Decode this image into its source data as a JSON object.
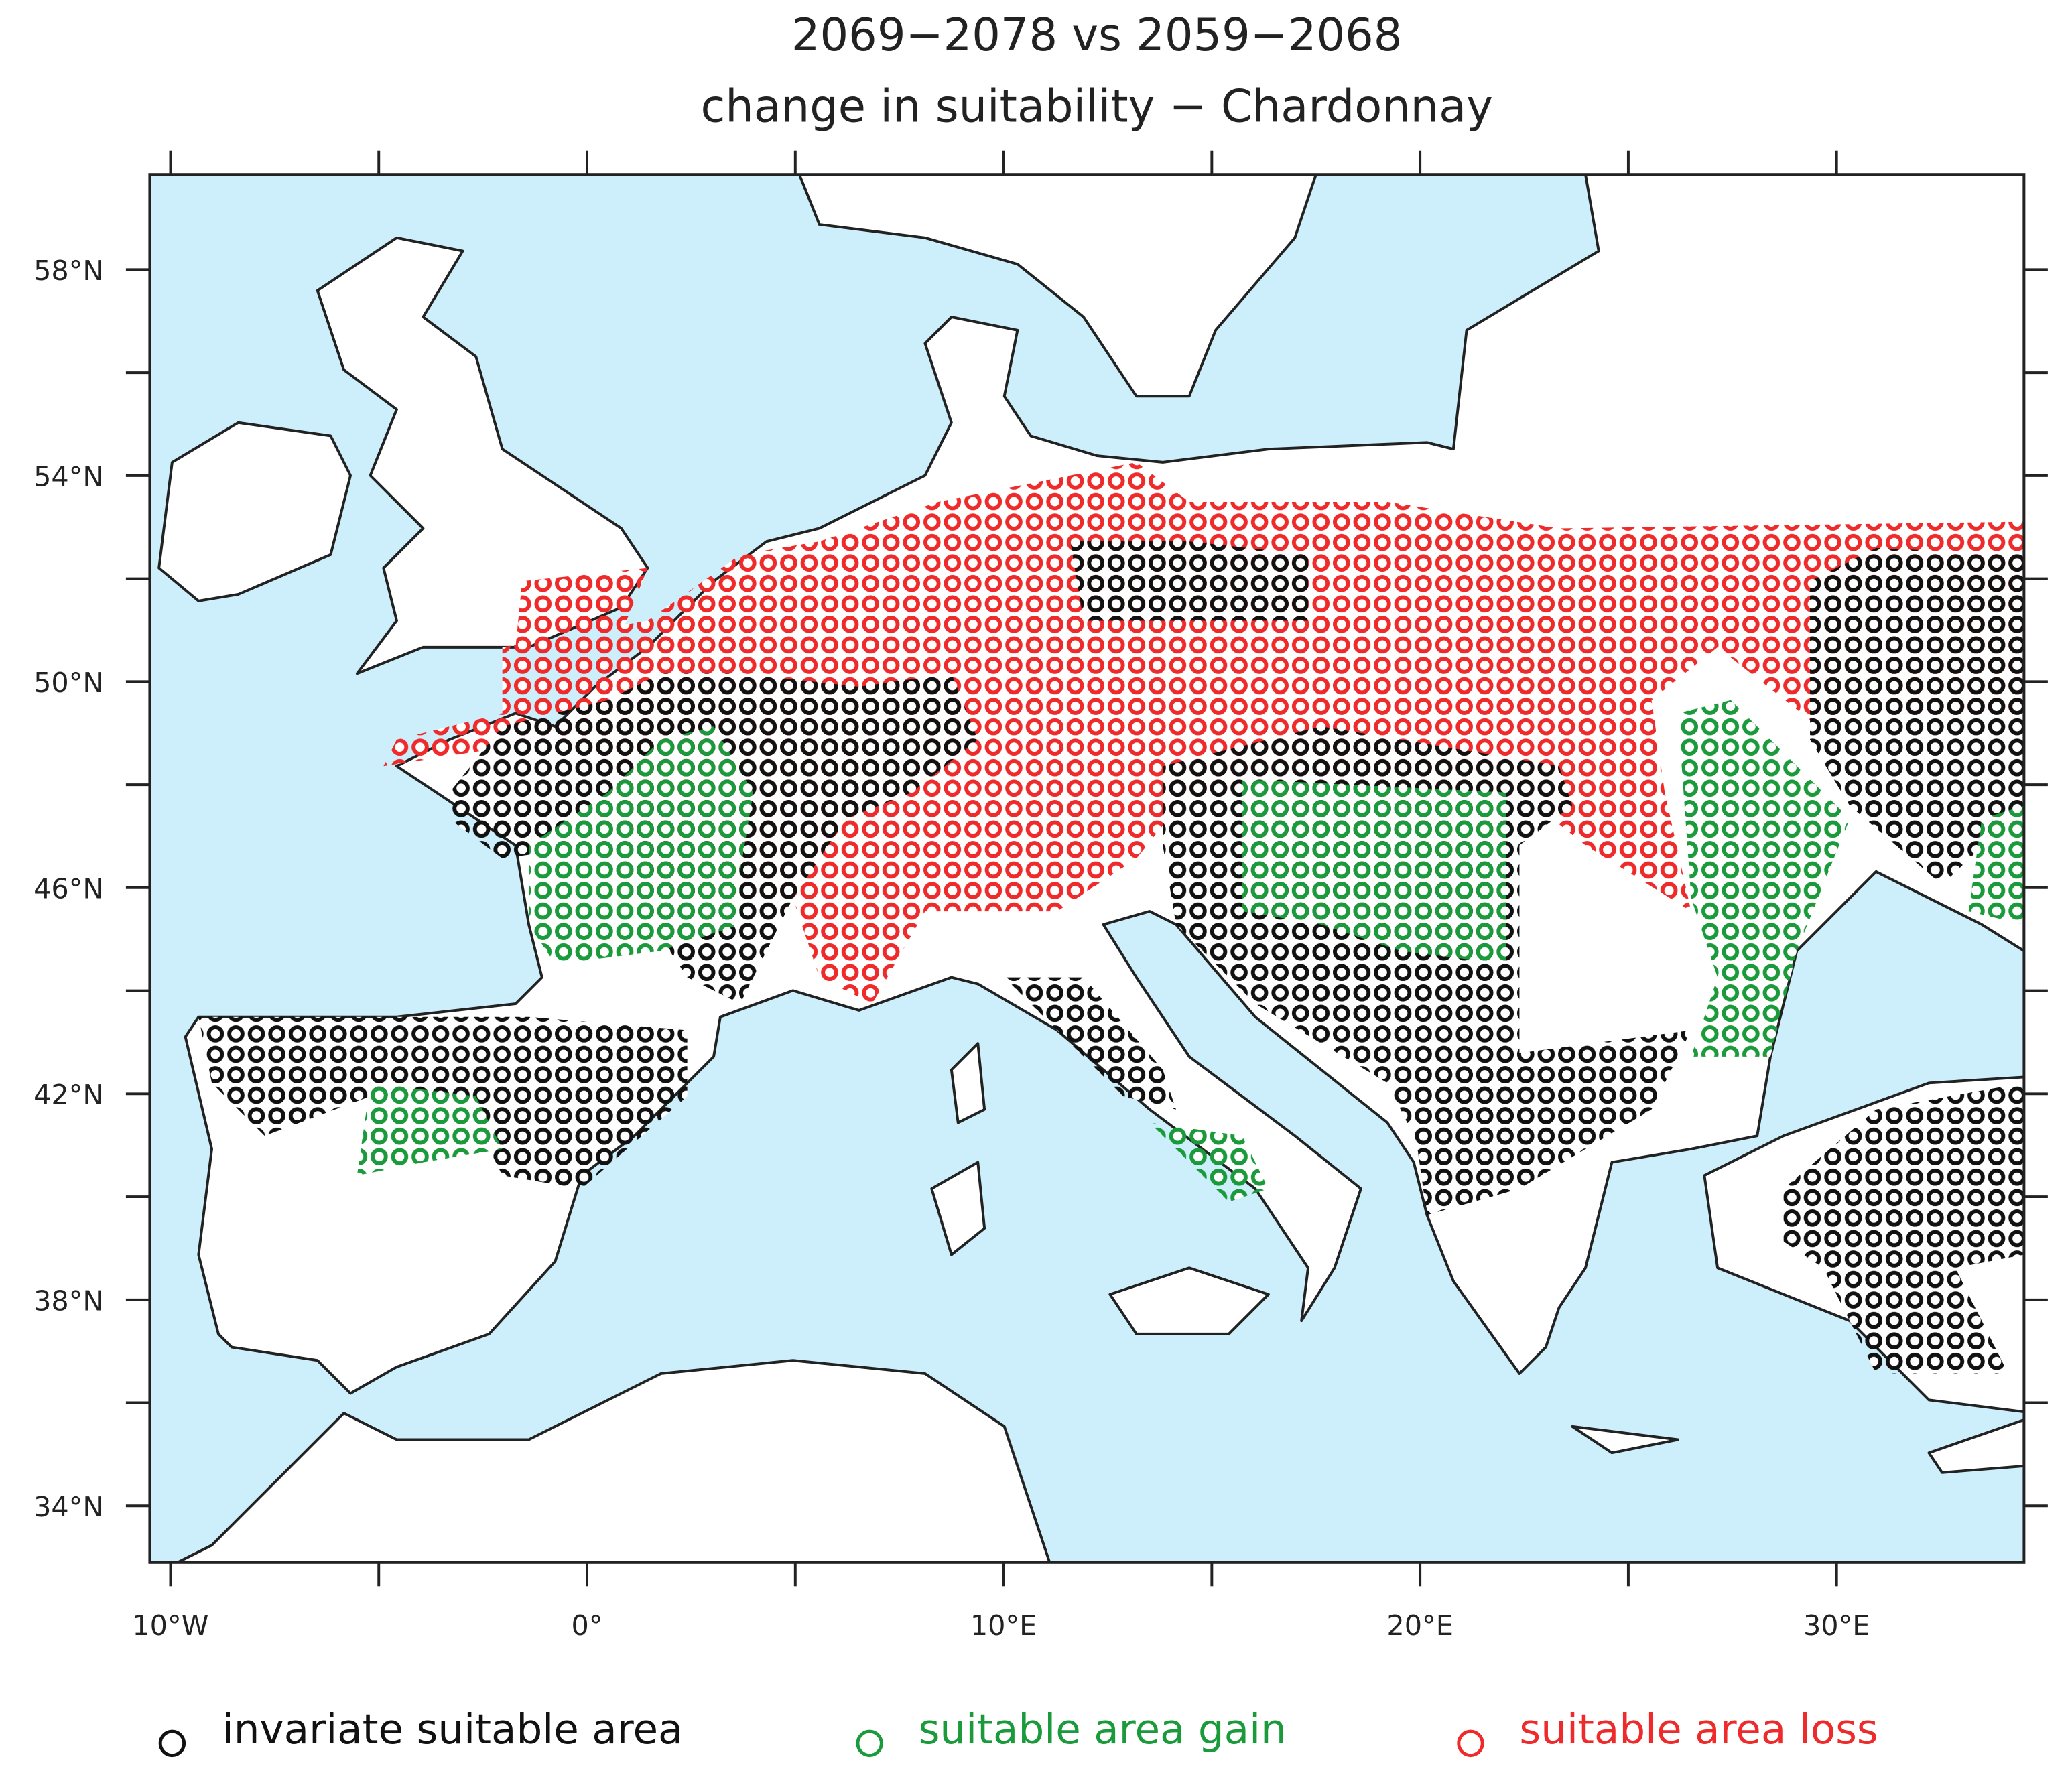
{
  "title": [
    "2069−2078 vs 2059−2068",
    "change in suitability − Chardonnay"
  ],
  "map": {
    "lon_range": [
      -10.5,
      34.5
    ],
    "lat_range": [
      32.9,
      59.85
    ],
    "lon_ticks": [
      {
        "value": -10,
        "label": "10°W"
      },
      {
        "value": 0,
        "label": "0°"
      },
      {
        "value": 10,
        "label": "10°E"
      },
      {
        "value": 20,
        "label": "20°E"
      },
      {
        "value": 30,
        "label": "30°E"
      }
    ],
    "lon_minor_ticks": [
      -5,
      5,
      15,
      25
    ],
    "lat_ticks": [
      {
        "value": 58,
        "label": "58°N"
      },
      {
        "value": 54,
        "label": "54°N"
      },
      {
        "value": 50,
        "label": "50°N"
      },
      {
        "value": 46,
        "label": "46°N"
      },
      {
        "value": 42,
        "label": "42°N"
      },
      {
        "value": 38,
        "label": "38°N"
      },
      {
        "value": 34,
        "label": "34°N"
      }
    ],
    "lat_minor_ticks": [
      56,
      52,
      48,
      44,
      40,
      36
    ]
  },
  "legend": [
    {
      "label": "invariate suitable area",
      "color": "#111111"
    },
    {
      "label": "suitable area gain",
      "color": "#1a9a3a"
    },
    {
      "label": "suitable area loss",
      "color": "#ee2a2a"
    }
  ]
}
